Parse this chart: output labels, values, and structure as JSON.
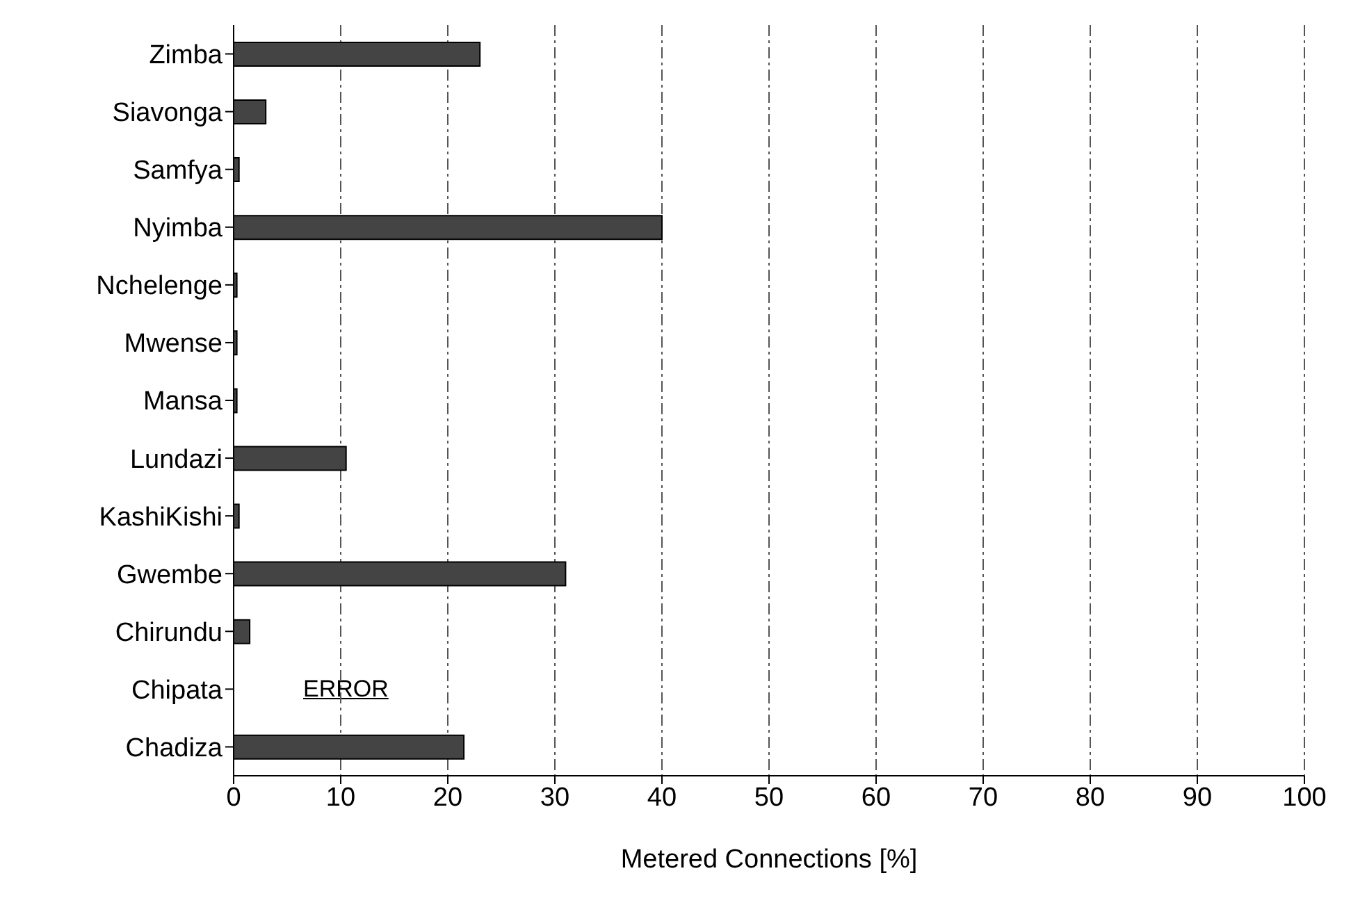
{
  "chart_data": {
    "type": "bar",
    "orientation": "horizontal",
    "xlabel": "Metered Connections [%]",
    "categories": [
      "Zimba",
      "Siavonga",
      "Samfya",
      "Nyimba",
      "Nchelenge",
      "Mwense",
      "Mansa",
      "Lundazi",
      "KashiKishi",
      "Gwembe",
      "Chirundu",
      "Chipata",
      "Chadiza"
    ],
    "values": [
      23,
      3,
      0.5,
      40,
      0.3,
      0.3,
      0.3,
      10.5,
      0.5,
      31,
      1.5,
      null,
      21.5
    ],
    "color": "#444444",
    "xlim": [
      0,
      100
    ],
    "xticks": [
      0,
      10,
      20,
      30,
      40,
      50,
      60,
      70,
      80,
      90,
      100
    ],
    "grid": "x",
    "annotations": [
      "ERROR"
    ]
  }
}
